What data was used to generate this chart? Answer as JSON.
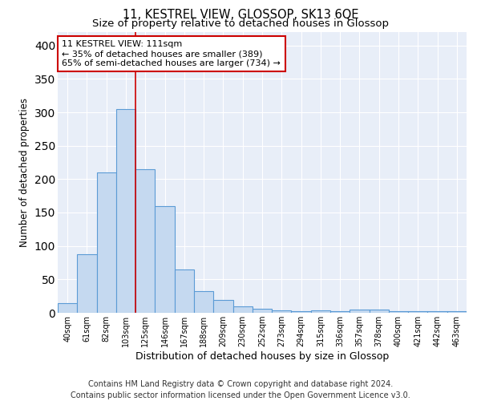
{
  "title": "11, KESTREL VIEW, GLOSSOP, SK13 6QE",
  "subtitle": "Size of property relative to detached houses in Glossop",
  "xlabel": "Distribution of detached houses by size in Glossop",
  "ylabel": "Number of detached properties",
  "footer_line1": "Contains HM Land Registry data © Crown copyright and database right 2024.",
  "footer_line2": "Contains public sector information licensed under the Open Government Licence v3.0.",
  "categories": [
    "40sqm",
    "61sqm",
    "82sqm",
    "103sqm",
    "125sqm",
    "146sqm",
    "167sqm",
    "188sqm",
    "209sqm",
    "230sqm",
    "252sqm",
    "273sqm",
    "294sqm",
    "315sqm",
    "336sqm",
    "357sqm",
    "378sqm",
    "400sqm",
    "421sqm",
    "442sqm",
    "463sqm"
  ],
  "values": [
    15,
    88,
    210,
    305,
    215,
    160,
    65,
    32,
    19,
    10,
    6,
    4,
    2,
    4,
    2,
    5,
    5,
    3,
    2,
    2,
    3
  ],
  "bar_color": "#c5d9f0",
  "bar_edge_color": "#5b9bd5",
  "annotation_line1": "11 KESTREL VIEW: 111sqm",
  "annotation_line2": "← 35% of detached houses are smaller (389)",
  "annotation_line3": "65% of semi-detached houses are larger (734) →",
  "annotation_box_facecolor": "#ffffff",
  "annotation_box_edgecolor": "#cc0000",
  "vline_color": "#cc0000",
  "vline_x_index": 3.5,
  "ylim": [
    0,
    420
  ],
  "yticks": [
    0,
    50,
    100,
    150,
    200,
    250,
    300,
    350,
    400
  ],
  "background_color": "#ffffff",
  "plot_background_color": "#e8eef8",
  "grid_color": "#ffffff",
  "title_fontsize": 10.5,
  "subtitle_fontsize": 9.5,
  "xlabel_fontsize": 9,
  "ylabel_fontsize": 8.5,
  "tick_fontsize": 7,
  "annotation_fontsize": 8,
  "footer_fontsize": 7
}
